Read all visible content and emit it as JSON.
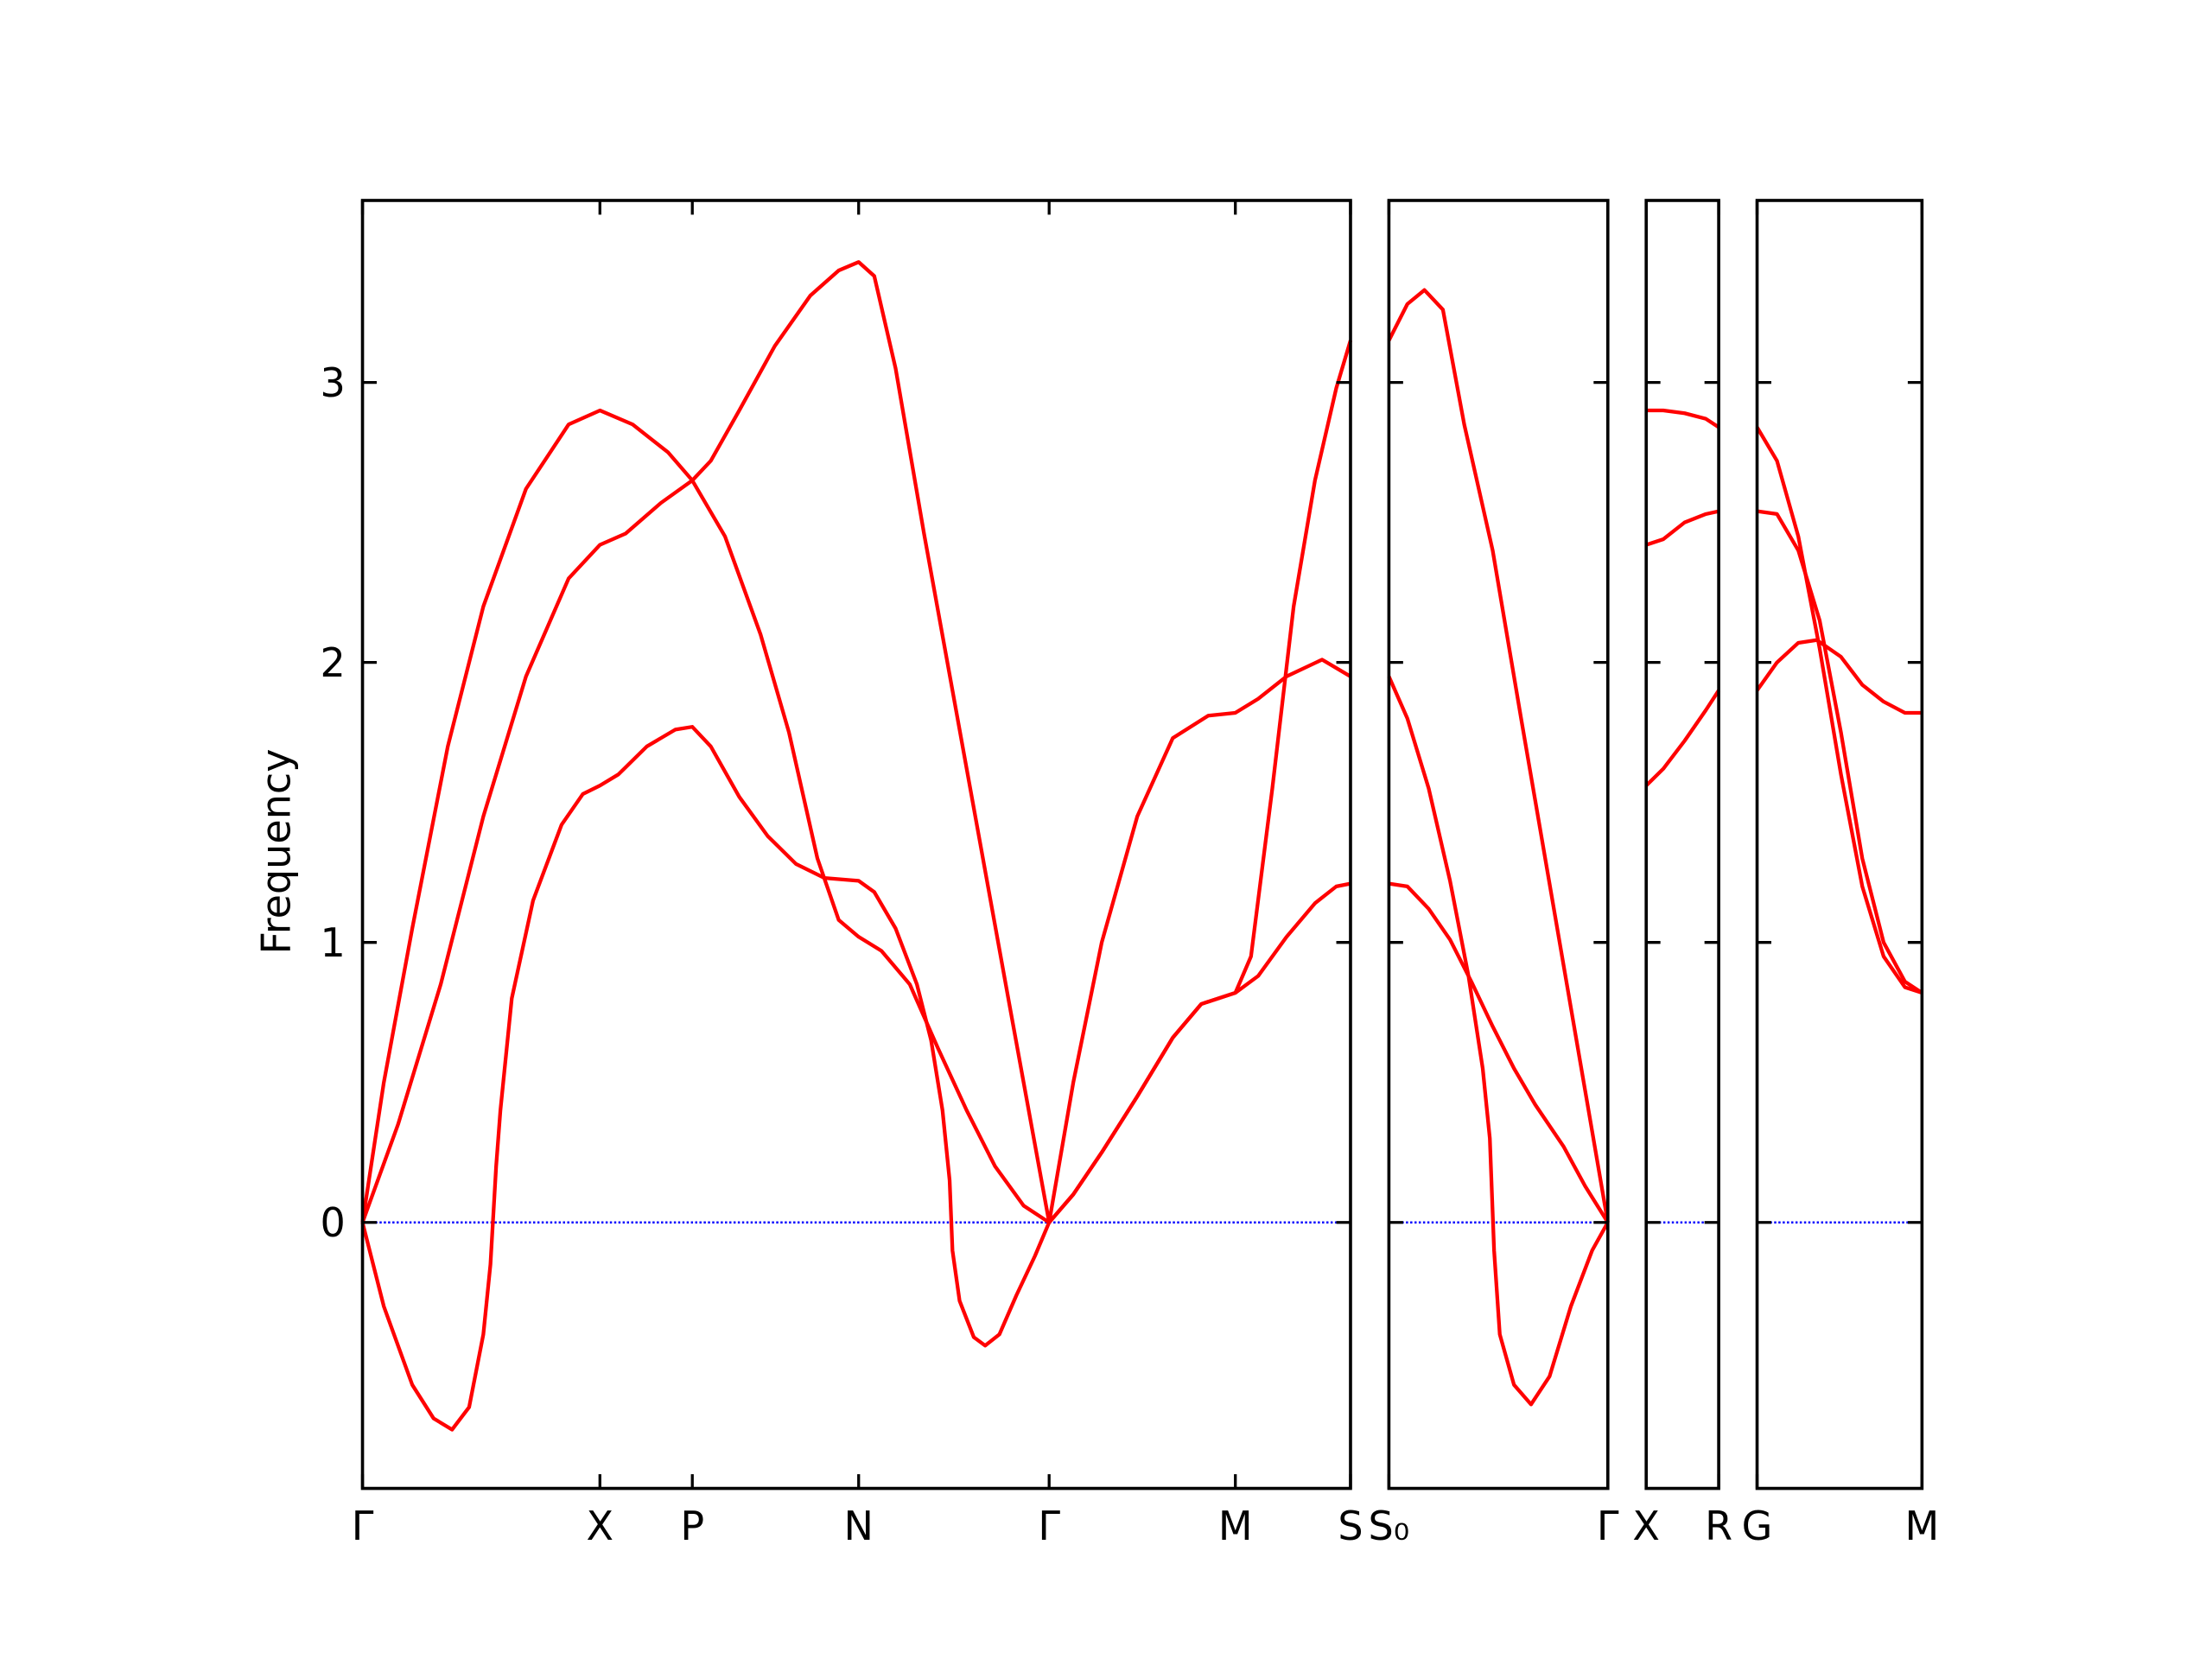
{
  "chart_data": [
    {
      "type": "line",
      "ylabel": "Frequency",
      "xlim": [
        0,
        6.95
      ],
      "ylim": [
        -0.95,
        3.65
      ],
      "yticks": [
        0,
        1,
        2,
        3
      ],
      "ytick_labels": true,
      "xticks": [
        {
          "value": 0,
          "label": "Γ"
        },
        {
          "value": 1.67,
          "label": "X"
        },
        {
          "value": 2.32,
          "label": "P"
        },
        {
          "value": 3.49,
          "label": "N"
        },
        {
          "value": 4.83,
          "label": "Γ"
        },
        {
          "value": 6.14,
          "label": "M"
        },
        {
          "value": 6.95,
          "label": "S"
        }
      ],
      "hline": {
        "y": 0,
        "color": "#0000ff",
        "style": "dotted"
      },
      "series": [
        {
          "color": "#ff0000",
          "x": [
            0,
            0.15,
            0.35,
            0.5,
            0.63,
            0.75,
            0.85,
            0.9,
            0.94,
            0.97,
            1.05,
            1.2,
            1.4,
            1.55,
            1.67,
            1.8,
            2.0,
            2.2,
            2.32,
            2.45,
            2.65,
            2.85,
            3.05,
            3.25,
            3.49,
            3.6,
            3.75,
            3.9,
            4.0,
            4.08,
            4.13,
            4.15,
            4.2,
            4.3,
            4.38,
            4.48,
            4.6,
            4.73,
            4.83,
            5.0,
            5.2,
            5.45,
            5.7,
            5.9,
            6.14,
            6.3,
            6.5,
            6.7,
            6.85,
            6.95
          ],
          "values": [
            0,
            -0.3,
            -0.58,
            -0.7,
            -0.74,
            -0.66,
            -0.4,
            -0.15,
            0.2,
            0.4,
            0.8,
            1.15,
            1.42,
            1.53,
            1.56,
            1.6,
            1.7,
            1.76,
            1.77,
            1.7,
            1.52,
            1.38,
            1.28,
            1.23,
            1.22,
            1.18,
            1.05,
            0.85,
            0.65,
            0.4,
            0.15,
            -0.1,
            -0.28,
            -0.41,
            -0.44,
            -0.4,
            -0.26,
            -0.12,
            0,
            0.1,
            0.25,
            0.45,
            0.66,
            0.78,
            0.82,
            0.88,
            1.02,
            1.14,
            1.2,
            1.21
          ]
        },
        {
          "color": "#ff0000",
          "x": [
            0,
            0.25,
            0.55,
            0.85,
            1.15,
            1.45,
            1.67,
            1.85,
            2.1,
            2.32,
            2.45,
            2.65,
            2.9,
            3.15,
            3.35,
            3.49,
            3.6,
            3.75,
            3.95,
            4.15,
            4.35,
            4.55,
            4.83,
            5.0,
            5.2,
            5.45,
            5.7,
            5.95,
            6.14,
            6.3,
            6.5,
            6.75,
            6.95
          ],
          "values": [
            0,
            0.35,
            0.85,
            1.45,
            1.95,
            2.3,
            2.42,
            2.46,
            2.57,
            2.65,
            2.72,
            2.9,
            3.13,
            3.31,
            3.4,
            3.43,
            3.38,
            3.05,
            2.46,
            1.9,
            1.34,
            0.78,
            0,
            0.5,
            1.0,
            1.45,
            1.73,
            1.81,
            1.82,
            1.87,
            1.95,
            2.01,
            1.95
          ]
        },
        {
          "color": "#ff0000",
          "x": [
            0,
            0.15,
            0.35,
            0.6,
            0.85,
            1.15,
            1.45,
            1.67,
            1.9,
            2.15,
            2.32,
            2.55,
            2.8,
            3.0,
            3.2,
            3.35,
            3.49,
            3.65,
            3.85,
            4.05,
            4.25,
            4.45,
            4.65,
            4.83,
            5.0,
            5.2,
            5.45,
            5.7,
            5.9,
            6.14,
            6.25,
            6.4,
            6.55,
            6.7,
            6.85,
            6.95
          ],
          "values": [
            0,
            0.5,
            1.05,
            1.7,
            2.2,
            2.62,
            2.85,
            2.9,
            2.85,
            2.75,
            2.65,
            2.45,
            2.1,
            1.75,
            1.3,
            1.08,
            1.02,
            0.97,
            0.85,
            0.62,
            0.4,
            0.2,
            0.06,
            0,
            0.1,
            0.25,
            0.45,
            0.66,
            0.78,
            0.82,
            0.95,
            1.55,
            2.2,
            2.65,
            2.98,
            3.15
          ]
        }
      ]
    },
    {
      "type": "line",
      "xlim": [
        0,
        1.54
      ],
      "ylim": [
        -0.95,
        3.65
      ],
      "yticks": [
        0,
        1,
        2,
        3
      ],
      "ytick_labels": false,
      "xticks": [
        {
          "value": 0,
          "label": "S₀"
        },
        {
          "value": 1.54,
          "label": "Γ"
        }
      ],
      "hline": {
        "y": 0,
        "color": "#0000ff",
        "style": "dotted"
      },
      "series": [
        {
          "color": "#ff0000",
          "x": [
            0,
            0.13,
            0.25,
            0.38,
            0.53,
            0.73,
            0.93,
            1.13,
            1.33,
            1.54
          ],
          "values": [
            3.15,
            3.28,
            3.33,
            3.26,
            2.85,
            2.4,
            1.8,
            1.21,
            0.62,
            0
          ]
        },
        {
          "color": "#ff0000",
          "x": [
            0,
            0.13,
            0.28,
            0.43,
            0.56,
            0.66,
            0.71,
            0.74,
            0.78,
            0.88,
            1.0,
            1.13,
            1.28,
            1.43,
            1.54
          ],
          "values": [
            1.95,
            1.8,
            1.55,
            1.22,
            0.88,
            0.55,
            0.3,
            -0.1,
            -0.4,
            -0.58,
            -0.65,
            -0.55,
            -0.3,
            -0.1,
            0
          ]
        },
        {
          "color": "#ff0000",
          "x": [
            0,
            0.13,
            0.28,
            0.43,
            0.58,
            0.73,
            0.88,
            1.03,
            1.23,
            1.38,
            1.54
          ],
          "values": [
            1.21,
            1.2,
            1.12,
            1.01,
            0.86,
            0.7,
            0.55,
            0.42,
            0.27,
            0.13,
            0
          ]
        }
      ]
    },
    {
      "type": "line",
      "xlim": [
        0,
        0.51
      ],
      "ylim": [
        -0.95,
        3.65
      ],
      "yticks": [
        0,
        1,
        2,
        3
      ],
      "ytick_labels": false,
      "xticks": [
        {
          "value": 0,
          "label": "X"
        },
        {
          "value": 0.51,
          "label": "R"
        }
      ],
      "hline": {
        "y": 0,
        "color": "#0000ff",
        "style": "dotted"
      },
      "series": [
        {
          "color": "#ff0000",
          "x": [
            0,
            0.12,
            0.27,
            0.42,
            0.51
          ],
          "values": [
            2.9,
            2.9,
            2.89,
            2.87,
            2.84
          ]
        },
        {
          "color": "#ff0000",
          "x": [
            0,
            0.12,
            0.27,
            0.42,
            0.51
          ],
          "values": [
            2.42,
            2.44,
            2.5,
            2.53,
            2.54
          ]
        },
        {
          "color": "#ff0000",
          "x": [
            0,
            0.12,
            0.27,
            0.42,
            0.51
          ],
          "values": [
            1.56,
            1.62,
            1.72,
            1.83,
            1.9
          ]
        }
      ]
    },
    {
      "type": "line",
      "xlim": [
        0,
        1.16
      ],
      "ylim": [
        -0.95,
        3.65
      ],
      "yticks": [
        0,
        1,
        2,
        3
      ],
      "ytick_labels": false,
      "xticks": [
        {
          "value": 0,
          "label": "G"
        },
        {
          "value": 1.16,
          "label": "M"
        }
      ],
      "hline": {
        "y": 0,
        "color": "#0000ff",
        "style": "dotted"
      },
      "series": [
        {
          "color": "#ff0000",
          "x": [
            0,
            0.14,
            0.29,
            0.44,
            0.59,
            0.74,
            0.89,
            1.04,
            1.16
          ],
          "values": [
            2.84,
            2.72,
            2.45,
            2.05,
            1.6,
            1.2,
            0.95,
            0.84,
            0.82
          ]
        },
        {
          "color": "#ff0000",
          "x": [
            0,
            0.14,
            0.29,
            0.44,
            0.59,
            0.74,
            0.89,
            1.04,
            1.16
          ],
          "values": [
            2.54,
            2.53,
            2.4,
            2.15,
            1.75,
            1.3,
            1.0,
            0.86,
            0.82
          ]
        },
        {
          "color": "#ff0000",
          "x": [
            0,
            0.14,
            0.29,
            0.42,
            0.59,
            0.74,
            0.89,
            1.04,
            1.16
          ],
          "values": [
            1.9,
            2.0,
            2.07,
            2.08,
            2.02,
            1.92,
            1.86,
            1.82,
            1.82
          ]
        }
      ]
    }
  ]
}
